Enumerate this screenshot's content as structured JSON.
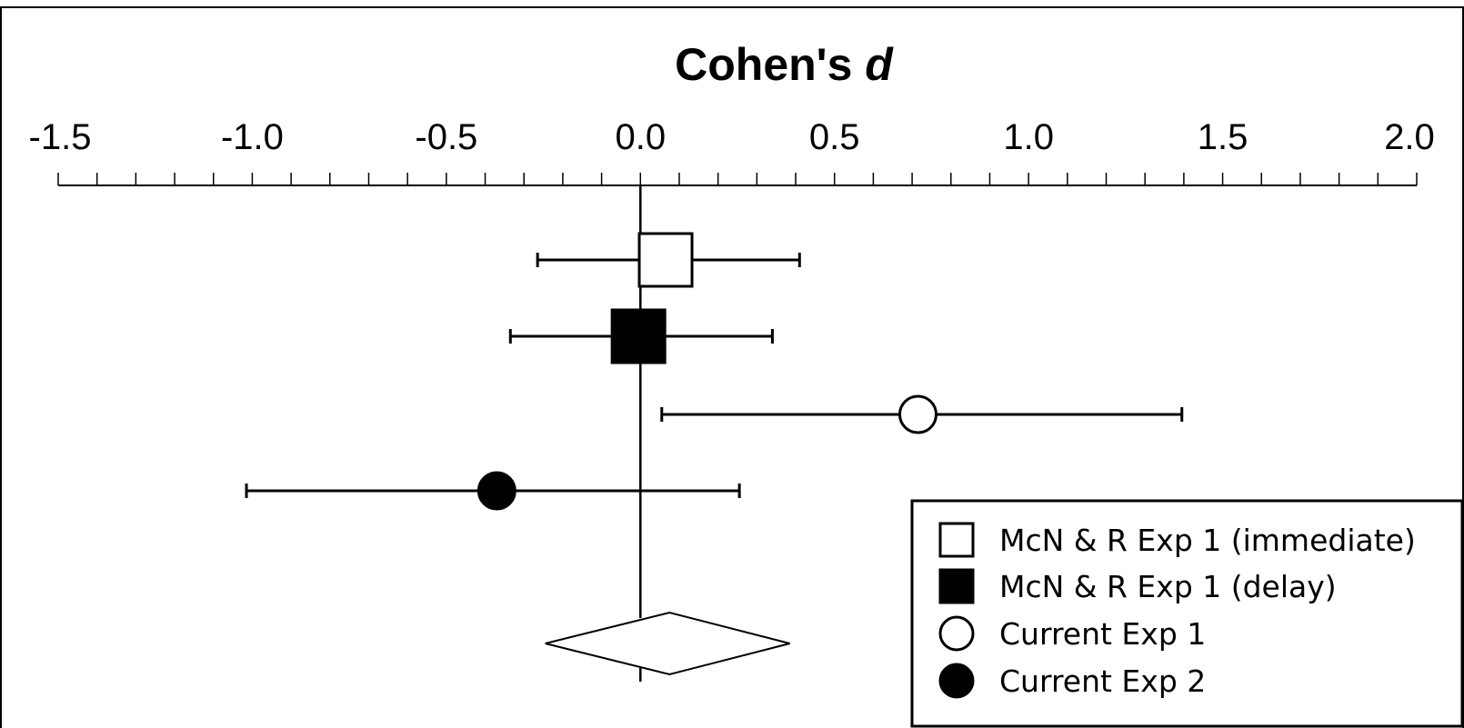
{
  "chart_data": {
    "type": "scatter",
    "title": "Cohen's",
    "title_italic": "d",
    "xlim": [
      -1.5,
      2.0
    ],
    "x_ticks": [
      "-1.5",
      "-1.0",
      "-0.5",
      "0.0",
      "0.5",
      "1.0",
      "1.5",
      "2.0"
    ],
    "minor_tick_step": 0.1,
    "reference_line_x": 0.0,
    "series": [
      {
        "name": "McN & R Exp 1 (immediate)",
        "marker": "square-open",
        "d": 0.065,
        "ci_low": -0.265,
        "ci_high": 0.41
      },
      {
        "name": "McN & R Exp 1 (delay)",
        "marker": "square-filled",
        "d": -0.005,
        "ci_low": -0.335,
        "ci_high": 0.34
      },
      {
        "name": "Current Exp 1",
        "marker": "circle-open",
        "d": 0.715,
        "ci_low": 0.055,
        "ci_high": 1.395
      },
      {
        "name": "Current Exp 2",
        "marker": "circle-filled",
        "d": -0.37,
        "ci_low": -1.015,
        "ci_high": 0.255
      }
    ],
    "summary": {
      "marker": "diamond-open",
      "d": 0.075,
      "ci_low": -0.245,
      "ci_high": 0.385
    },
    "legend_position": "bottom-right",
    "grid": false,
    "colors": {
      "foreground": "#000000",
      "background": "#ffffff"
    }
  }
}
